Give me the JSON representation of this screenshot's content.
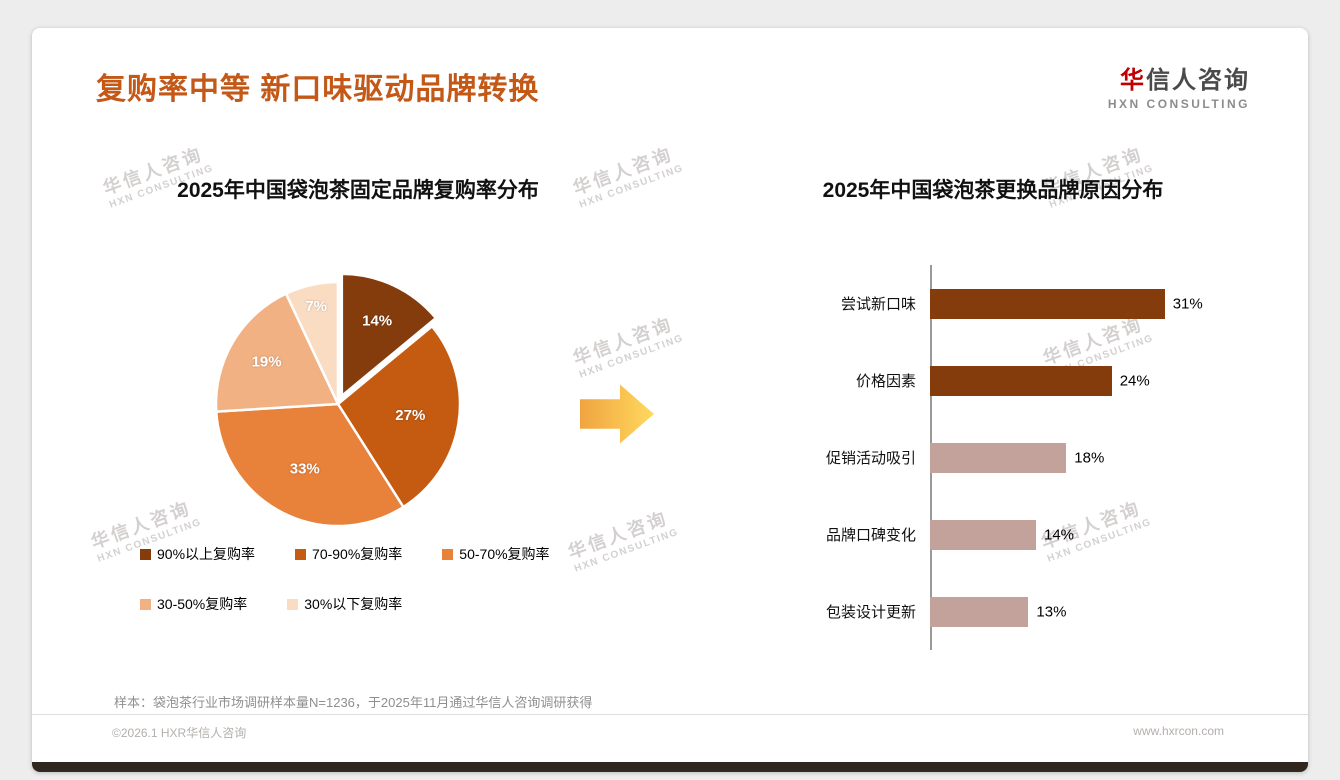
{
  "page": {
    "title": "复购率中等 新口味驱动品牌转换",
    "logo": {
      "mark": "华",
      "name_rest": "信人咨询",
      "subtitle": "HXN CONSULTING"
    },
    "watermark": {
      "line1": "华信人咨询",
      "line2": "HXN CONSULTING"
    },
    "footnote": "样本：袋泡茶行业市场调研样本量N=1236，于2025年11月通过华信人咨询调研获得",
    "copyright": "©2026.1 HXR华信人咨询",
    "website": "www.hxrcon.com",
    "colors": {
      "title": "#c35817",
      "accent_dark": "#843c0c",
      "accent_light": "#c3a29b",
      "arrow": "#ffc94a"
    }
  },
  "chart_data": [
    {
      "type": "pie",
      "title": "2025年中国袋泡茶固定品牌复购率分布",
      "labels": [
        "90%以上复购率",
        "70-90%复购率",
        "50-70%复购率",
        "30-50%复购率",
        "30%以下复购率"
      ],
      "values": [
        14,
        27,
        33,
        19,
        7
      ],
      "data_labels": [
        "14%",
        "27%",
        "33%",
        "19%",
        "7%"
      ],
      "colors": [
        "#843c0c",
        "#c55a11",
        "#e8813a",
        "#f2b183",
        "#fadcc2"
      ],
      "legend_position": "bottom",
      "start_angle_deg": 0,
      "direction": "clockwise",
      "exploded_slice": 0
    },
    {
      "type": "bar",
      "orientation": "horizontal",
      "title": "2025年中国袋泡茶更换品牌原因分布",
      "categories": [
        "尝试新口味",
        "价格因素",
        "促销活动吸引",
        "品牌口碑变化",
        "包装设计更新"
      ],
      "values": [
        31,
        24,
        18,
        14,
        13
      ],
      "value_labels": [
        "31%",
        "24%",
        "18%",
        "14%",
        "13%"
      ],
      "colors": [
        "#843c0c",
        "#843c0c",
        "#c3a29b",
        "#c3a29b",
        "#c3a29b"
      ],
      "xlim": [
        0,
        35
      ],
      "grid": false,
      "legend": false
    }
  ]
}
